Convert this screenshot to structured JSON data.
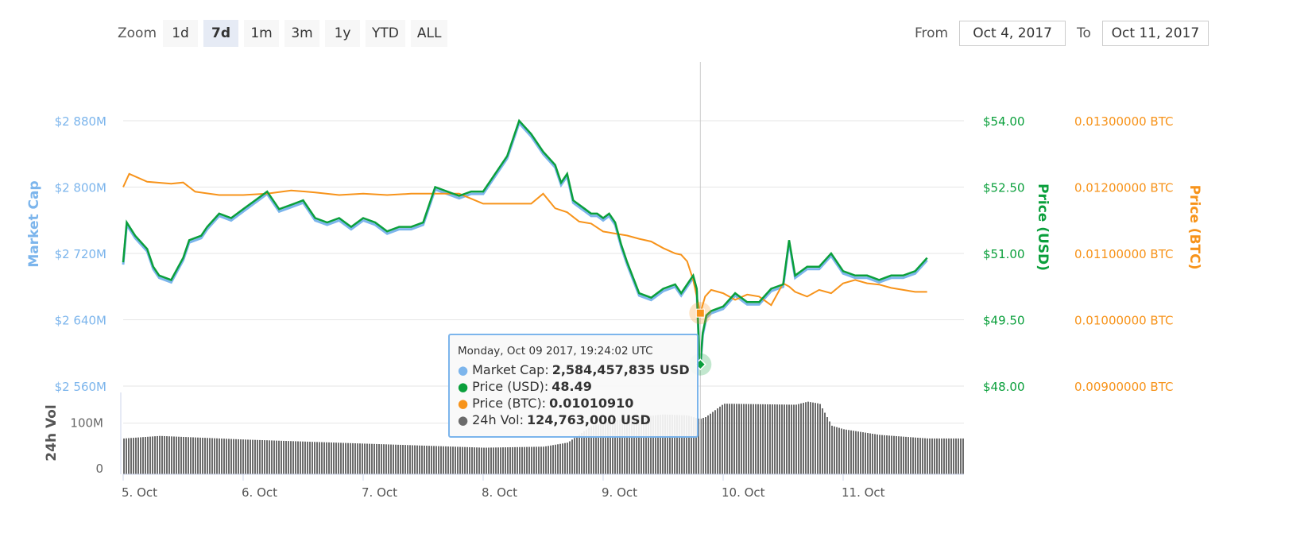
{
  "zoom": {
    "label": "Zoom",
    "buttons": [
      {
        "label": "1d",
        "active": false
      },
      {
        "label": "7d",
        "active": true
      },
      {
        "label": "1m",
        "active": false
      },
      {
        "label": "3m",
        "active": false
      },
      {
        "label": "1y",
        "active": false
      },
      {
        "label": "YTD",
        "active": false
      },
      {
        "label": "ALL",
        "active": false
      }
    ]
  },
  "range": {
    "from_label": "From",
    "from_value": "Oct 4, 2017",
    "to_label": "To",
    "to_value": "Oct 11, 2017"
  },
  "tooltip": {
    "date": "Monday, Oct 09 2017, 19:24:02 UTC",
    "rows": [
      {
        "label": "Market Cap:",
        "value": "2,584,457,835 USD",
        "color": "#7cb5ec"
      },
      {
        "label": "Price (USD):",
        "value": "48.49",
        "color": "#0a9f3b"
      },
      {
        "label": "Price (BTC):",
        "value": "0.01010910",
        "color": "#f7931a"
      },
      {
        "label": "24h Vol:",
        "value": "124,763,000 USD",
        "color": "#6b6b6b"
      }
    ]
  },
  "colors": {
    "market_cap": "#7cb5ec",
    "price_usd": "#0a9f3b",
    "price_btc": "#f7931a",
    "volume": "#6b6b6b",
    "grid": "#e6e6e6"
  },
  "chart_data": {
    "type": "line",
    "x_ticks": [
      "5. Oct",
      "6. Oct",
      "7. Oct",
      "8. Oct",
      "9. Oct",
      "10. Oct",
      "11. Oct"
    ],
    "axes": {
      "market_cap": {
        "title": "Market Cap",
        "range": [
          2560,
          2880
        ],
        "ticks": [
          "$2 560M",
          "$2 640M",
          "$2 720M",
          "$2 800M",
          "$2 880M"
        ]
      },
      "price_usd": {
        "title": "Price (USD)",
        "range": [
          48.0,
          54.0
        ],
        "ticks": [
          "$48.00",
          "$49.50",
          "$51.00",
          "$52.50",
          "$54.00"
        ]
      },
      "price_btc": {
        "title": "Price (BTC)",
        "range": [
          0.009,
          0.013
        ],
        "ticks": [
          "0.00900000 BTC",
          "0.01000000 BTC",
          "0.01100000 BTC",
          "0.01200000 BTC",
          "0.01300000 BTC"
        ]
      },
      "volume": {
        "title": "24h Vol",
        "ticks": [
          "0",
          "100M"
        ]
      }
    },
    "crosshair_day": 4.81,
    "series": [
      {
        "name": "Price (USD)",
        "x": [
          0.0,
          0.03,
          0.1,
          0.2,
          0.25,
          0.3,
          0.4,
          0.5,
          0.55,
          0.65,
          0.7,
          0.8,
          0.9,
          1.0,
          1.1,
          1.2,
          1.3,
          1.4,
          1.5,
          1.6,
          1.7,
          1.8,
          1.9,
          2.0,
          2.1,
          2.2,
          2.3,
          2.4,
          2.5,
          2.6,
          2.7,
          2.8,
          2.9,
          3.0,
          3.1,
          3.2,
          3.3,
          3.4,
          3.5,
          3.6,
          3.65,
          3.7,
          3.75,
          3.8,
          3.85,
          3.9,
          3.95,
          4.0,
          4.05,
          4.1,
          4.15,
          4.2,
          4.3,
          4.4,
          4.5,
          4.6,
          4.65,
          4.7,
          4.75,
          4.78,
          4.8,
          4.81,
          4.83,
          4.86,
          4.9,
          5.0,
          5.1,
          5.2,
          5.3,
          5.4,
          5.5,
          5.55,
          5.6,
          5.7,
          5.8,
          5.9,
          6.0,
          6.1,
          6.2,
          6.3,
          6.4,
          6.5,
          6.6,
          6.7
        ],
        "y": [
          50.8,
          51.7,
          51.4,
          51.1,
          50.7,
          50.5,
          50.4,
          50.9,
          51.3,
          51.4,
          51.6,
          51.9,
          51.8,
          52.0,
          52.2,
          52.4,
          52.0,
          52.1,
          52.2,
          51.8,
          51.7,
          51.8,
          51.6,
          51.8,
          51.7,
          51.5,
          51.6,
          51.6,
          51.7,
          52.5,
          52.4,
          52.3,
          52.4,
          52.4,
          52.8,
          53.2,
          54.0,
          53.7,
          53.3,
          53.0,
          52.6,
          52.8,
          52.2,
          52.1,
          52.0,
          51.9,
          51.9,
          51.8,
          51.9,
          51.7,
          51.2,
          50.8,
          50.1,
          50.0,
          50.2,
          50.3,
          50.1,
          50.3,
          50.5,
          50.2,
          48.8,
          48.49,
          49.2,
          49.6,
          49.7,
          49.8,
          50.1,
          49.9,
          49.9,
          50.2,
          50.3,
          51.3,
          50.5,
          50.7,
          50.7,
          51.0,
          50.6,
          50.5,
          50.5,
          50.4,
          50.5,
          50.5,
          50.6,
          50.9
        ]
      },
      {
        "name": "Price (BTC)",
        "x": [
          0.0,
          0.05,
          0.2,
          0.4,
          0.5,
          0.6,
          0.8,
          1.0,
          1.2,
          1.4,
          1.6,
          1.8,
          2.0,
          2.2,
          2.4,
          2.6,
          2.8,
          3.0,
          3.2,
          3.4,
          3.5,
          3.6,
          3.7,
          3.8,
          3.9,
          4.0,
          4.1,
          4.2,
          4.3,
          4.4,
          4.5,
          4.6,
          4.65,
          4.7,
          4.75,
          4.81,
          4.85,
          4.9,
          5.0,
          5.1,
          5.2,
          5.3,
          5.4,
          5.5,
          5.55,
          5.6,
          5.7,
          5.8,
          5.9,
          6.0,
          6.1,
          6.2,
          6.3,
          6.4,
          6.5,
          6.6,
          6.7
        ],
        "y": [
          0.012,
          0.0122,
          0.01208,
          0.01205,
          0.01207,
          0.01193,
          0.01188,
          0.01188,
          0.0119,
          0.01195,
          0.01192,
          0.01188,
          0.0119,
          0.01188,
          0.0119,
          0.0119,
          0.0119,
          0.01175,
          0.01175,
          0.01175,
          0.0119,
          0.01168,
          0.01162,
          0.01148,
          0.01145,
          0.01133,
          0.0113,
          0.01127,
          0.01122,
          0.01118,
          0.01108,
          0.011,
          0.01098,
          0.01088,
          0.0106,
          0.0101,
          0.01035,
          0.01045,
          0.0104,
          0.0103,
          0.01038,
          0.01035,
          0.01022,
          0.01055,
          0.0105,
          0.01042,
          0.01035,
          0.01045,
          0.0104,
          0.01055,
          0.0106,
          0.01055,
          0.01053,
          0.01048,
          0.01045,
          0.01042,
          0.01042
        ]
      },
      {
        "name": "24h Vol",
        "unit": "USD millions",
        "x": [
          0.0,
          0.3,
          0.6,
          1.0,
          1.5,
          2.0,
          2.5,
          3.0,
          3.5,
          3.7,
          3.9,
          4.2,
          4.5,
          4.7,
          4.8,
          4.85,
          5.0,
          5.3,
          5.6,
          5.7,
          5.8,
          5.9,
          6.0,
          6.3,
          6.7
        ],
        "y": [
          70,
          75,
          72,
          68,
          64,
          60,
          56,
          52,
          54,
          62,
          95,
          110,
          117,
          115,
          108,
          112,
          138,
          137,
          136,
          142,
          138,
          95,
          88,
          77,
          70
        ]
      }
    ]
  }
}
